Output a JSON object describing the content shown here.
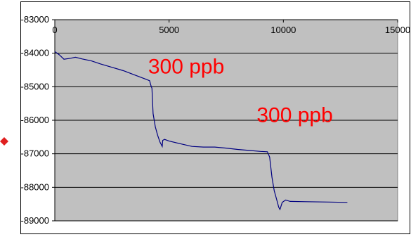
{
  "chart_data": {
    "type": "line",
    "title": "",
    "xlabel": "",
    "ylabel": "",
    "xlim": [
      0,
      15000
    ],
    "ylim": [
      -89000,
      -83000
    ],
    "x_ticks": [
      "0",
      "5000",
      "10000",
      "15000"
    ],
    "y_ticks": [
      "-83000",
      "-84000",
      "-85000",
      "-86000",
      "-87000",
      "-88000",
      "-89000"
    ],
    "x_axis_position": "top",
    "grid": "horizontal major gridlines",
    "legend": "none",
    "plot_background": "#c0c0c0",
    "series": [
      {
        "color": "#000080",
        "points": [
          [
            0,
            -83950
          ],
          [
            200,
            -84050
          ],
          [
            400,
            -84180
          ],
          [
            700,
            -84150
          ],
          [
            900,
            -84120
          ],
          [
            1200,
            -84170
          ],
          [
            1600,
            -84230
          ],
          [
            2000,
            -84320
          ],
          [
            2500,
            -84420
          ],
          [
            3000,
            -84520
          ],
          [
            3500,
            -84650
          ],
          [
            4000,
            -84780
          ],
          [
            4150,
            -84820
          ],
          [
            4200,
            -84950
          ],
          [
            4250,
            -85050
          ],
          [
            4300,
            -85800
          ],
          [
            4400,
            -86200
          ],
          [
            4500,
            -86450
          ],
          [
            4600,
            -86650
          ],
          [
            4700,
            -86780
          ],
          [
            4720,
            -86600
          ],
          [
            4800,
            -86570
          ],
          [
            5000,
            -86620
          ],
          [
            5500,
            -86700
          ],
          [
            6000,
            -86780
          ],
          [
            6500,
            -86800
          ],
          [
            7000,
            -86800
          ],
          [
            7500,
            -86830
          ],
          [
            8000,
            -86870
          ],
          [
            8500,
            -86900
          ],
          [
            9000,
            -86930
          ],
          [
            9300,
            -86940
          ],
          [
            9400,
            -87100
          ],
          [
            9500,
            -87700
          ],
          [
            9600,
            -88100
          ],
          [
            9700,
            -88350
          ],
          [
            9800,
            -88600
          ],
          [
            9850,
            -88660
          ],
          [
            9950,
            -88450
          ],
          [
            10100,
            -88380
          ],
          [
            10300,
            -88420
          ],
          [
            11000,
            -88430
          ],
          [
            12000,
            -88440
          ],
          [
            12800,
            -88450
          ]
        ]
      }
    ],
    "annotations": [
      {
        "text": "300 ppb",
        "x": 5750,
        "y": -84600,
        "color": "#ff0000"
      },
      {
        "text": "300 ppb",
        "x": 10500,
        "y": -86050,
        "color": "#ff0000"
      }
    ],
    "edge_marker_color": "#e02020"
  }
}
